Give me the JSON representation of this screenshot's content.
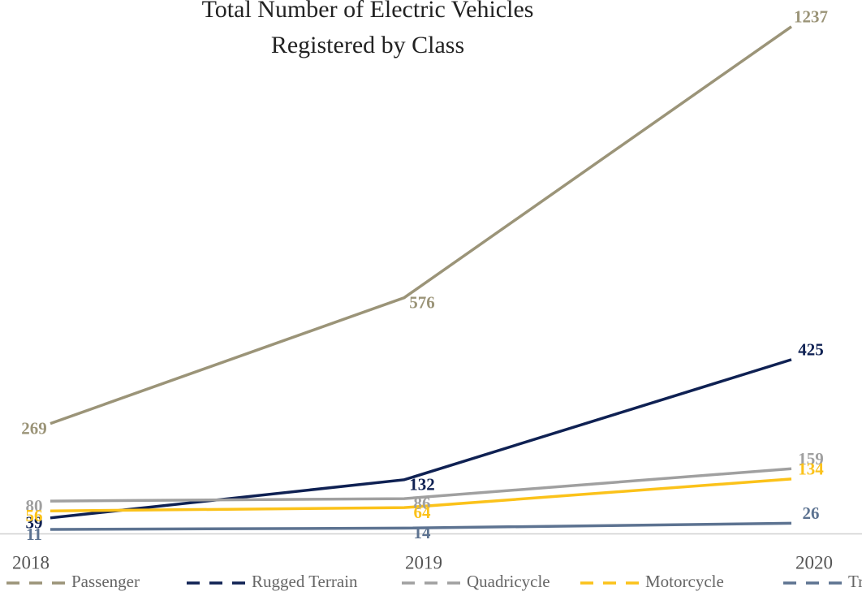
{
  "chart_data": {
    "type": "line",
    "title": "Total Number of Electric Vehicles Registered by Class",
    "categories": [
      "2018",
      "2019",
      "2020"
    ],
    "series": [
      {
        "name": "Passenger",
        "color": "#9b9478",
        "values": [
          269,
          576,
          1237
        ]
      },
      {
        "name": "Rugged Terrain",
        "color": "#0f2153",
        "values": [
          39,
          132,
          425
        ]
      },
      {
        "name": "Quadricycle",
        "color": "#a0a0a0",
        "values": [
          80,
          86,
          159
        ]
      },
      {
        "name": "Motorcycle",
        "color": "#fbc21a",
        "values": [
          56,
          64,
          134
        ]
      },
      {
        "name": "Truck",
        "color": "#5d7391",
        "values": [
          11,
          14,
          26
        ]
      }
    ],
    "ylim": [
      0,
      1300
    ],
    "legend": "bottom"
  }
}
